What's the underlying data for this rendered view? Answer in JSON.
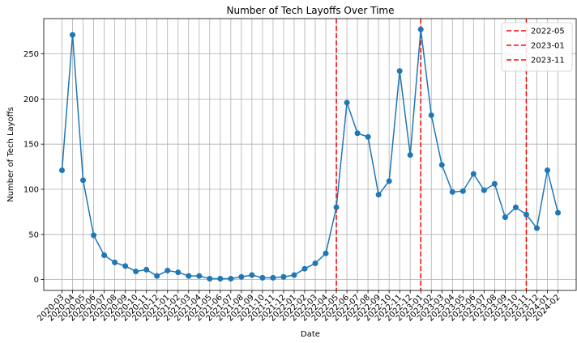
{
  "chart_data": {
    "type": "line",
    "title": "Number of Tech Layoffs Over Time",
    "xlabel": "Date",
    "ylabel": "Number of Tech Layoffs",
    "ylim": [
      -12,
      289
    ],
    "yticks": [
      0,
      50,
      100,
      150,
      200,
      250
    ],
    "grid": true,
    "legend_position": "top-right",
    "series_color": "#1f77b4",
    "x": [
      "2020-03",
      "2020-04",
      "2020-05",
      "2020-06",
      "2020-07",
      "2020-08",
      "2020-09",
      "2020-10",
      "2020-11",
      "2020-12",
      "2021-01",
      "2021-02",
      "2021-03",
      "2021-04",
      "2021-05",
      "2021-06",
      "2021-07",
      "2021-08",
      "2021-09",
      "2021-10",
      "2021-11",
      "2021-12",
      "2022-01",
      "2022-02",
      "2022-03",
      "2022-04",
      "2022-05",
      "2022-06",
      "2022-07",
      "2022-08",
      "2022-09",
      "2022-10",
      "2022-11",
      "2022-12",
      "2023-01",
      "2023-02",
      "2023-03",
      "2023-04",
      "2023-05",
      "2023-06",
      "2023-07",
      "2023-08",
      "2023-09",
      "2023-10",
      "2023-11",
      "2023-12",
      "2024-01",
      "2024-02"
    ],
    "values": [
      121,
      271,
      110,
      49,
      27,
      19,
      15,
      9,
      11,
      4,
      10,
      8,
      4,
      4,
      1,
      1,
      1,
      3,
      5,
      2,
      2,
      3,
      5,
      12,
      18,
      29,
      80,
      196,
      162,
      158,
      94,
      109,
      231,
      138,
      277,
      182,
      127,
      97,
      98,
      117,
      99,
      106,
      69,
      80,
      72,
      57,
      121,
      74
    ],
    "vlines": [
      {
        "x": "2022-05",
        "label": "2022-05",
        "color": "#ff0000"
      },
      {
        "x": "2023-01",
        "label": "2023-01",
        "color": "#ff0000"
      },
      {
        "x": "2023-11",
        "label": "2023-11",
        "color": "#ff0000"
      }
    ]
  }
}
